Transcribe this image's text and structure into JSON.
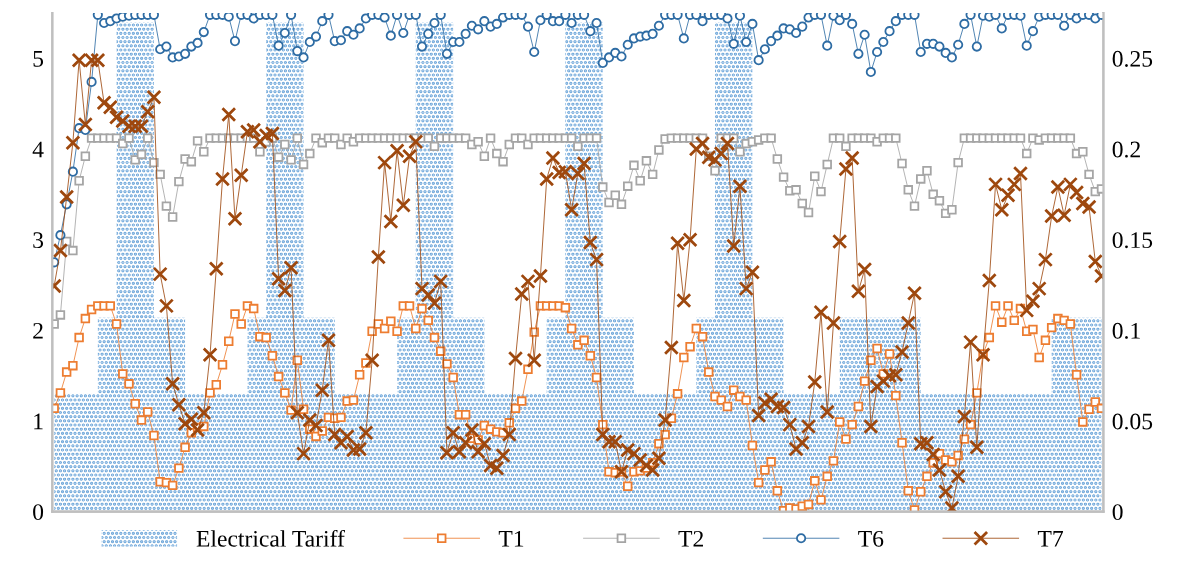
{
  "chart_data": {
    "type": "line",
    "categories": [
      null,
      null,
      null,
      null,
      null,
      null,
      null,
      null,
      null,
      null,
      null,
      null,
      null,
      null,
      null,
      null,
      null,
      null,
      null,
      null,
      null,
      null,
      null,
      null,
      null,
      null,
      null,
      null,
      null,
      null,
      null,
      null,
      null,
      null,
      null,
      null,
      null,
      null,
      null,
      null,
      null,
      null,
      null,
      null,
      null,
      null,
      null,
      null,
      null,
      null,
      null,
      null,
      null,
      null,
      null,
      null,
      null,
      null,
      null,
      null,
      null,
      null,
      null,
      null,
      null,
      null,
      null,
      null,
      null,
      null,
      null,
      null,
      null,
      null,
      null,
      null,
      null,
      null,
      null,
      null,
      null,
      null,
      null,
      null,
      null,
      null,
      null,
      null,
      null,
      null,
      null,
      null,
      null,
      null,
      null,
      null,
      null,
      null,
      null,
      null,
      null,
      null,
      null,
      null,
      null,
      null,
      null,
      null,
      null,
      null,
      null,
      null,
      null,
      null,
      null,
      null,
      null,
      null,
      null,
      null,
      null,
      null,
      null,
      null,
      null,
      null,
      null,
      null,
      null,
      null,
      null,
      null,
      null,
      null,
      null,
      null,
      null,
      null,
      null,
      null,
      null,
      null,
      null,
      null,
      null,
      null,
      null,
      null,
      null,
      null,
      null,
      null,
      null,
      null,
      null,
      null,
      null,
      null,
      null,
      null,
      null,
      null,
      null,
      null,
      null,
      null,
      null,
      null,
      null
    ],
    "ylim": [
      0,
      5.5
    ],
    "yticks": [
      0,
      1,
      2,
      3,
      4,
      5
    ],
    "y2lim": [
      0,
      0.275
    ],
    "y2ticks": [
      0,
      0.05,
      0.1,
      0.15,
      0.2,
      0.25
    ],
    "legend": "bottom",
    "series": [
      {
        "name": "Electrical Tariff",
        "type": "area",
        "axis": "y2",
        "color": "#5b9bd5",
        "values": [
          0.065,
          0.065,
          0.065,
          0.065,
          0.065,
          0.065,
          0.065,
          0.107,
          0.107,
          0.107,
          0.27,
          0.27,
          0.27,
          0.27,
          0.27,
          0.27,
          0.107,
          0.107,
          0.107,
          0.107,
          0.107,
          0.065,
          0.065,
          0.065,
          0.065,
          0.065,
          0.065,
          0.065,
          0.065,
          0.065,
          0.065,
          0.107,
          0.107,
          0.107,
          0.27,
          0.27,
          0.27,
          0.27,
          0.27,
          0.27,
          0.107,
          0.107,
          0.107,
          0.107,
          0.107,
          0.065,
          0.065,
          0.065,
          0.065,
          0.065,
          0.065,
          0.065,
          0.065,
          0.065,
          0.065,
          0.107,
          0.107,
          0.107,
          0.27,
          0.27,
          0.27,
          0.27,
          0.27,
          0.27,
          0.107,
          0.107,
          0.107,
          0.107,
          0.107,
          0.065,
          0.065,
          0.065,
          0.065,
          0.065,
          0.065,
          0.065,
          0.065,
          0.065,
          0.065,
          0.107,
          0.107,
          0.107,
          0.27,
          0.27,
          0.27,
          0.27,
          0.27,
          0.27,
          0.107,
          0.107,
          0.107,
          0.107,
          0.107,
          0.065,
          0.065,
          0.065,
          0.065,
          0.065,
          0.065,
          0.065,
          0.065,
          0.065,
          0.065,
          0.107,
          0.107,
          0.107,
          0.27,
          0.27,
          0.27,
          0.27,
          0.27,
          0.27,
          0.107,
          0.107,
          0.107,
          0.107,
          0.107,
          0.065,
          0.065,
          0.065,
          0.065,
          0.065,
          0.065,
          0.065,
          0.065,
          0.065,
          0.107,
          0.107,
          0.107,
          0.107,
          0.107,
          0.107,
          0.107,
          0.107,
          0.107,
          0.107,
          0.107,
          0.107,
          0.107,
          0.065,
          0.065,
          0.065,
          0.065,
          0.065,
          0.065,
          0.065,
          0.065,
          0.065,
          0.065,
          0.065,
          0.065,
          0.065,
          0.065,
          0.065,
          0.065,
          0.065,
          0.065,
          0.065,
          0.065,
          0.065,
          0.107,
          0.107,
          0.107,
          0.107,
          0.107,
          0.107,
          0.107,
          0.107,
          0.107
        ]
      },
      {
        "name": "T1",
        "color": "#ed7d31",
        "marker": "square",
        "values": [
          1.14,
          1.31,
          1.54,
          1.61,
          1.92,
          2.13,
          2.23,
          2.27,
          2.27,
          2.27,
          2.07,
          1.52,
          1.41,
          1.19,
          1.01,
          1.1,
          0.84,
          0.33,
          0.32,
          0.29,
          0.48,
          0.71,
          0.87,
          0.93,
          0.94,
          1.31,
          1.4,
          1.62,
          1.88,
          2.18,
          2.07,
          2.27,
          2.24,
          1.93,
          1.92,
          1.72,
          1.49,
          1.31,
          1.12,
          1.67,
          1.13,
          0.91,
          0.83,
          0.89,
          1.04,
          1.03,
          1.04,
          1.22,
          1.23,
          1.51,
          1.64,
          1.99,
          2.07,
          2.02,
          2.1,
          1.99,
          2.27,
          2.27,
          2.02,
          2.24,
          2.11,
          1.92,
          1.77,
          1.63,
          1.48,
          1.07,
          1.07,
          0.81,
          0.79,
          0.95,
          0.91,
          0.88,
          0.87,
          0.98,
          1.14,
          1.22,
          1.57,
          1.98,
          2.27,
          2.27,
          2.27,
          2.27,
          2.25,
          2.02,
          1.84,
          1.89,
          1.72,
          1.48,
          0.96,
          0.44,
          0.43,
          0.44,
          0.28,
          0.44,
          0.45,
          0.48,
          0.54,
          0.75,
          0.85,
          1.03,
          1.3,
          1.7,
          1.82,
          2.02,
          1.93,
          1.54,
          1.27,
          1.23,
          1.16,
          1.34,
          1.27,
          1.23,
          0.73,
          0.32,
          0.46,
          0.55,
          0.23,
          0.01,
          0.04,
          0.03,
          0.06,
          0.08,
          0.34,
          0.13,
          0.39,
          0.56,
          0.99,
          0.8,
          0.96,
          1.16,
          1.44,
          1.67,
          1.8,
          1.52,
          1.74,
          1.28,
          0.76,
          0.23,
          0.02,
          0.22,
          0.39,
          0.54,
          0.64,
          0.57,
          0.55,
          0.62,
          0.8,
          0.96,
          1.31,
          1.74,
          1.92,
          2.27,
          2.09,
          2.27,
          2.11,
          2.24,
          1.99,
          2.01,
          1.7,
          1.89,
          2.03,
          2.13,
          2.11,
          2.07,
          1.51,
          0.99,
          1.13,
          1.21,
          1.14
        ]
      },
      {
        "name": "T2",
        "color": "#a5a5a5",
        "marker": "square",
        "values": [
          2.07,
          2.17,
          2.98,
          2.88,
          3.65,
          3.92,
          4.12,
          4.12,
          4.12,
          4.12,
          4.12,
          4.06,
          4.12,
          3.88,
          3.94,
          4.12,
          3.85,
          3.72,
          3.37,
          3.25,
          3.64,
          3.89,
          3.86,
          4.09,
          3.97,
          4.12,
          4.12,
          4.12,
          4.12,
          4.12,
          4.12,
          4.12,
          4.12,
          3.97,
          4.08,
          4.12,
          3.91,
          4.05,
          3.88,
          4.12,
          3.83,
          3.95,
          4.12,
          4.07,
          4.12,
          4.12,
          4.05,
          4.12,
          4.08,
          4.12,
          4.12,
          4.12,
          4.12,
          4.12,
          4.12,
          4.12,
          4.12,
          4.12,
          4.12,
          4.12,
          4.12,
          4.03,
          4.12,
          4.12,
          4.12,
          4.12,
          4.12,
          4.05,
          4.08,
          3.92,
          4.12,
          3.95,
          3.86,
          4.05,
          4.12,
          4.12,
          4.05,
          4.12,
          4.12,
          4.12,
          4.12,
          4.12,
          4.12,
          4.12,
          4.03,
          4.12,
          4.12,
          4.12,
          3.58,
          3.41,
          3.49,
          3.39,
          3.59,
          3.82,
          3.65,
          3.87,
          3.72,
          3.99,
          4.11,
          4.12,
          4.12,
          4.12,
          4.12,
          4.12,
          4.12,
          3.92,
          3.76,
          4.12,
          4.12,
          4.12,
          3.97,
          4.06,
          4.08,
          4.1,
          4.12,
          4.12,
          3.89,
          3.69,
          3.54,
          3.55,
          3.4,
          3.3,
          3.7,
          3.53,
          3.83,
          4.12,
          4.12,
          4.03,
          4.12,
          4.12,
          4.12,
          4.12,
          4.08,
          4.12,
          4.12,
          4.12,
          3.84,
          3.55,
          3.37,
          3.67,
          3.76,
          3.5,
          3.43,
          3.29,
          3.33,
          3.85,
          4.12,
          4.12,
          4.12,
          4.12,
          4.12,
          4.12,
          4.12,
          4.12,
          4.12,
          4.12,
          3.95,
          4.12,
          4.1,
          4.12,
          4.12,
          4.12,
          4.12,
          4.12,
          3.95,
          3.97,
          3.72,
          3.53,
          3.56
        ]
      },
      {
        "name": "T6",
        "color": "#2e6ca4",
        "marker": "circle",
        "values": [
          2.75,
          3.05,
          3.39,
          3.75,
          4.23,
          4.21,
          4.74,
          5.48,
          5.39,
          5.41,
          5.44,
          5.46,
          5.47,
          5.48,
          5.48,
          5.48,
          5.48,
          5.1,
          5.13,
          5.01,
          5.02,
          5.05,
          5.13,
          5.17,
          5.29,
          5.48,
          5.48,
          5.48,
          5.46,
          5.19,
          5.48,
          5.48,
          5.44,
          5.48,
          5.48,
          5.48,
          5.14,
          5.28,
          5.48,
          5.08,
          5.01,
          5.18,
          5.24,
          5.41,
          5.48,
          5.19,
          5.2,
          5.3,
          5.26,
          5.33,
          5.44,
          5.48,
          5.48,
          5.45,
          5.25,
          5.48,
          5.28,
          5.48,
          5.48,
          5.13,
          5.27,
          5.39,
          5.48,
          5.05,
          5.18,
          5.18,
          5.27,
          5.36,
          5.32,
          5.41,
          5.35,
          5.38,
          5.45,
          5.48,
          5.48,
          5.48,
          5.35,
          5.07,
          5.42,
          5.48,
          5.41,
          5.41,
          5.48,
          5.39,
          5.48,
          5.48,
          5.3,
          5.39,
          4.95,
          5.01,
          5.06,
          5.02,
          5.15,
          5.22,
          5.24,
          5.25,
          5.27,
          5.36,
          5.48,
          5.48,
          5.48,
          5.22,
          5.48,
          5.48,
          5.41,
          5.48,
          5.48,
          5.48,
          5.44,
          5.16,
          5.47,
          5.18,
          5.38,
          4.98,
          5.1,
          5.19,
          5.25,
          5.33,
          5.32,
          5.28,
          5.35,
          5.45,
          5.48,
          5.48,
          5.14,
          5.47,
          5.42,
          5.48,
          5.38,
          5.05,
          5.26,
          4.85,
          5.07,
          5.18,
          5.3,
          5.41,
          5.48,
          5.48,
          5.48,
          5.07,
          5.16,
          5.16,
          5.13,
          5.06,
          5.01,
          5.15,
          5.38,
          5.48,
          5.13,
          5.47,
          5.46,
          5.48,
          5.33,
          5.48,
          5.48,
          5.47,
          5.14,
          5.3,
          5.46,
          5.48,
          5.48,
          5.48,
          5.36,
          5.48,
          5.44,
          5.48,
          5.48,
          5.44,
          5.48
        ]
      },
      {
        "name": "T7",
        "color": "#9e480e",
        "marker": "cross",
        "values": [
          2.49,
          2.88,
          3.47,
          4.07,
          4.98,
          4.27,
          4.98,
          4.98,
          4.51,
          4.46,
          4.35,
          4.31,
          4.25,
          4.25,
          4.25,
          4.41,
          4.57,
          2.62,
          2.27,
          1.41,
          1.18,
          0.97,
          1.02,
          0.9,
          1.09,
          1.73,
          2.68,
          3.67,
          4.38,
          3.23,
          3.71,
          4.19,
          4.21,
          4.08,
          4.15,
          4.17,
          2.57,
          2.44,
          2.69,
          1.09,
          0.64,
          1.01,
          0.95,
          1.34,
          1.89,
          0.85,
          0.76,
          0.83,
          0.68,
          0.69,
          0.87,
          1.67,
          2.81,
          3.85,
          3.2,
          3.98,
          3.38,
          3.92,
          4.08,
          2.46,
          2.39,
          2.3,
          2.54,
          0.65,
          0.87,
          0.66,
          0.76,
          0.9,
          0.66,
          0.75,
          0.51,
          0.48,
          0.62,
          0.85,
          1.69,
          2.4,
          2.54,
          1.67,
          2.6,
          3.67,
          3.9,
          3.74,
          3.75,
          3.33,
          3.73,
          3.84,
          2.97,
          2.78,
          0.85,
          0.77,
          0.77,
          0.44,
          0.68,
          0.64,
          0.57,
          0.51,
          0.46,
          0.59,
          1.01,
          1.81,
          2.96,
          2.33,
          3.0,
          4.0,
          4.06,
          3.91,
          3.88,
          3.95,
          4.06,
          2.93,
          3.59,
          2.46,
          2.64,
          1.06,
          1.2,
          1.24,
          1.16,
          1.15,
          0.96,
          0.69,
          0.76,
          0.94,
          1.43,
          2.2,
          1.1,
          2.08,
          2.98,
          3.78,
          3.9,
          2.43,
          2.67,
          0.94,
          1.38,
          1.44,
          1.5,
          1.51,
          1.76,
          2.08,
          2.41,
          0.75,
          0.76,
          0.63,
          0.46,
          0.22,
          0.04,
          0.39,
          1.05,
          1.87,
          0.71,
          1.73,
          2.55,
          3.61,
          3.33,
          3.49,
          3.61,
          3.73,
          2.22,
          2.32,
          2.46,
          2.78,
          3.26,
          3.58,
          3.27,
          3.61,
          3.52,
          3.4,
          3.36,
          2.76,
          2.6
        ]
      }
    ]
  }
}
